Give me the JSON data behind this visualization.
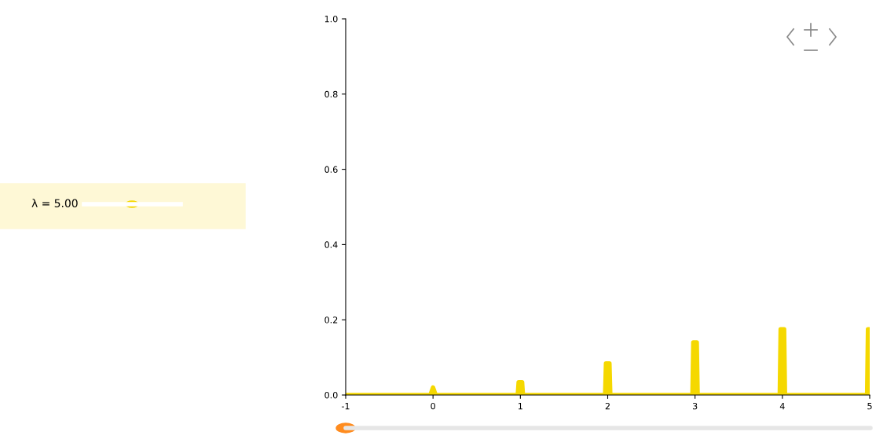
{
  "chart_data": {
    "type": "area",
    "x": [
      -1,
      -0.03,
      0,
      0.03,
      0.97,
      0.98,
      1.02,
      1.03,
      1.97,
      1.98,
      2.02,
      2.03,
      2.97,
      2.98,
      3.02,
      3.03,
      3.97,
      3.98,
      4.02,
      4.03,
      4.97,
      4.98,
      5
    ],
    "series": [
      {
        "color": "#f5d800",
        "values": [
          0,
          0,
          0.02,
          0,
          0,
          0.034,
          0.034,
          0,
          0,
          0.084,
          0.084,
          0,
          0,
          0.14,
          0.14,
          0,
          0,
          0.175,
          0.175,
          0,
          0,
          0.175,
          0.175
        ]
      }
    ],
    "xlim": [
      -1,
      5
    ],
    "xticks": [
      -1,
      0,
      1,
      2,
      3,
      4,
      5
    ],
    "ylim": [
      0,
      1
    ],
    "yticks": [
      {
        "value": 0,
        "label": "0.0"
      },
      {
        "value": 0.2,
        "label": "0.2"
      },
      {
        "value": 0.4,
        "label": "0.4"
      },
      {
        "value": 0.6,
        "label": "0.6"
      },
      {
        "value": 0.8,
        "label": "0.8"
      },
      {
        "value": 1,
        "label": "1.0"
      }
    ],
    "grid": false,
    "legend": false,
    "annotations": [
      "λ = 5.00"
    ]
  }
}
